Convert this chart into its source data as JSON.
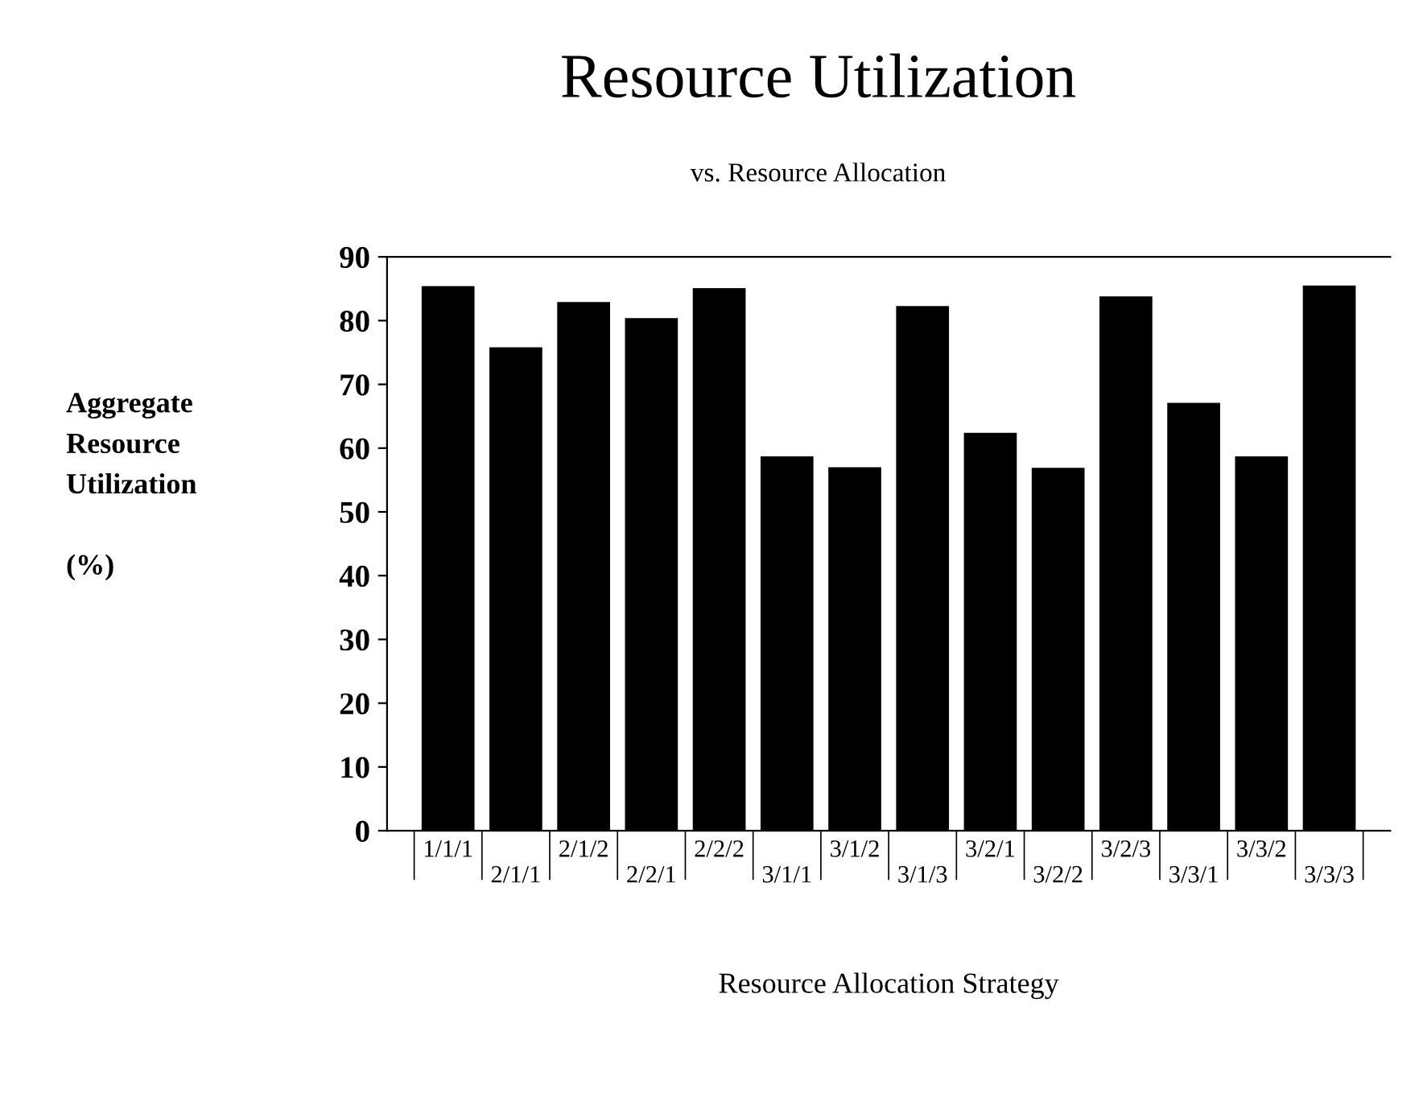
{
  "chart_data": {
    "type": "bar",
    "title": "Resource Utilization",
    "subtitle": "vs. Resource Allocation",
    "xlabel": "Resource Allocation Strategy",
    "ylabel": "Aggregate\nResource\nUtilization\n\n(%)",
    "categories": [
      "1/1/1",
      "2/1/1",
      "2/1/2",
      "2/2/1",
      "2/2/2",
      "3/1/1",
      "3/1/2",
      "3/1/3",
      "3/2/1",
      "3/2/2",
      "3/2/3",
      "3/3/1",
      "3/3/2",
      "3/3/3"
    ],
    "values": [
      85.4,
      75.8,
      82.9,
      80.4,
      85.1,
      58.7,
      57.0,
      82.3,
      62.4,
      56.9,
      83.8,
      67.1,
      58.7,
      85.5
    ],
    "color": "#000000",
    "ylim": [
      0,
      90
    ],
    "yticks": [
      0,
      10,
      20,
      30,
      40,
      50,
      60,
      70,
      80,
      90
    ],
    "grid": false,
    "legend": false
  }
}
